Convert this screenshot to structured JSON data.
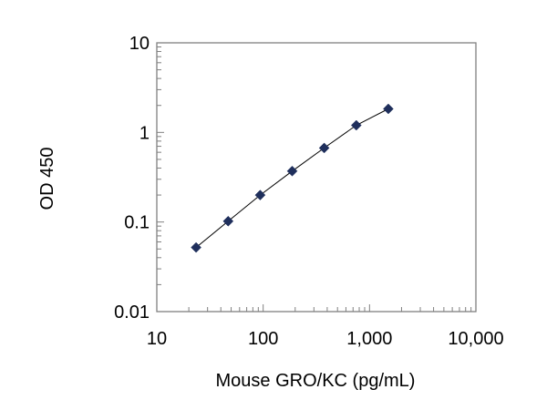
{
  "chart_data": {
    "type": "scatter",
    "title": "",
    "xlabel": "Mouse GRO/KC (pg/mL)",
    "ylabel": "OD 450",
    "x_scale": "log",
    "y_scale": "log",
    "xlim": [
      10,
      10000
    ],
    "ylim": [
      0.01,
      10
    ],
    "x_ticks": [
      {
        "value": 10,
        "label": "10"
      },
      {
        "value": 100,
        "label": "100"
      },
      {
        "value": 1000,
        "label": "1,000"
      },
      {
        "value": 10000,
        "label": "10,000"
      }
    ],
    "y_ticks": [
      {
        "value": 0.01,
        "label": "0.01"
      },
      {
        "value": 0.1,
        "label": "0.1"
      },
      {
        "value": 1,
        "label": "1"
      },
      {
        "value": 10,
        "label": "10"
      }
    ],
    "grid": false,
    "legend": "none",
    "series": [
      {
        "x": [
          23.4,
          46.9,
          93.8,
          187.5,
          375,
          750,
          1500
        ],
        "y": [
          0.052,
          0.102,
          0.2,
          0.37,
          0.67,
          1.2,
          1.83
        ]
      }
    ],
    "colors": {
      "marker": "#1f2f5c",
      "line": "#000000",
      "axis": "#808080",
      "text": "#000000"
    }
  }
}
